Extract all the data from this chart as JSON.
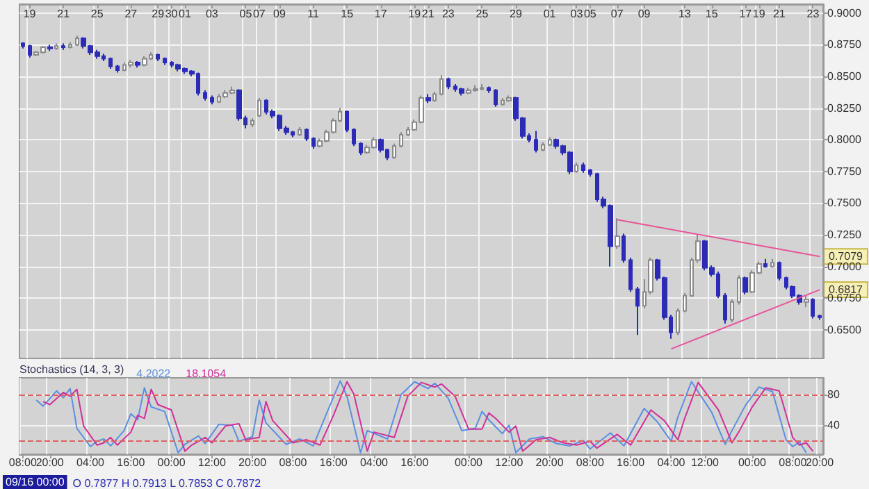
{
  "chart_data": [
    {
      "type": "candlestick",
      "grid": true,
      "marker": "none",
      "categories": [
        null,
        "19",
        null,
        null,
        null,
        null,
        "21",
        null,
        null,
        null,
        null,
        "25",
        null,
        null,
        null,
        null,
        "27",
        null,
        null,
        null,
        "29",
        null,
        "30",
        null,
        "01",
        null,
        null,
        null,
        "03",
        null,
        null,
        null,
        null,
        "05",
        null,
        "07",
        null,
        null,
        "09",
        null,
        null,
        null,
        null,
        "11",
        null,
        null,
        null,
        null,
        "15",
        null,
        null,
        null,
        null,
        "17",
        null,
        null,
        null,
        null,
        "19",
        null,
        "21",
        null,
        null,
        "23",
        null,
        null,
        null,
        null,
        "25",
        null,
        null,
        null,
        null,
        "29",
        null,
        null,
        null,
        null,
        "01",
        null,
        null,
        null,
        "03",
        null,
        "05",
        null,
        null,
        null,
        "07",
        null,
        null,
        null,
        "09",
        null,
        null,
        null,
        null,
        null,
        "13",
        null,
        null,
        null,
        "15",
        null,
        null,
        null,
        null,
        "17",
        null,
        "19",
        null,
        null,
        "21",
        null,
        null,
        null,
        null,
        "23",
        null
      ],
      "ylim": [
        0.6275,
        0.907
      ],
      "yticks": [
        {
          "value": 0.65,
          "label": "0.6500"
        },
        {
          "value": 0.675,
          "label": "0.6750"
        },
        {
          "value": 0.7,
          "label": "0.7000"
        },
        {
          "value": 0.725,
          "label": "0.7250"
        },
        {
          "value": 0.75,
          "label": "0.7500"
        },
        {
          "value": 0.775,
          "label": "0.7750"
        },
        {
          "value": 0.8,
          "label": "0.8000"
        },
        {
          "value": 0.825,
          "label": "0.8250"
        },
        {
          "value": 0.85,
          "label": "0.8500"
        },
        {
          "value": 0.875,
          "label": "0.8750"
        },
        {
          "value": 0.9,
          "label": "0.9000"
        }
      ],
      "annotations": [
        {
          "text": "0.7079",
          "y": 0.7079
        },
        {
          "text": "0.6817",
          "y": 0.6817
        }
      ],
      "series": [
        {
          "type": "candlestick",
          "colors": [
            "#2b2bb5",
            "#2b2bb5",
            "#ffffff",
            "#ffffff",
            "#2b2bb5",
            "#ffffff",
            "#2b2bb5",
            "#ffffff",
            "#ffffff",
            "#2b2bb5",
            "#2b2bb5",
            "#2b2bb5",
            "#2b2bb5",
            "#2b2bb5",
            "#2b2bb5",
            "#ffffff",
            "#ffffff",
            "#2b2bb5",
            "#ffffff",
            "#ffffff",
            "#2b2bb5",
            "#2b2bb5",
            "#2b2bb5",
            "#2b2bb5",
            "#2b2bb5",
            "#2b2bb5",
            "#2b2bb5",
            "#2b2bb5",
            "#2b2bb5",
            "#ffffff",
            "#ffffff",
            "#ffffff",
            "#2b2bb5",
            "#2b2bb5",
            "#ffffff",
            "#ffffff",
            "#2b2bb5",
            "#2b2bb5",
            "#2b2bb5",
            "#2b2bb5",
            "#2b2bb5",
            "#ffffff",
            "#2b2bb5",
            "#2b2bb5",
            "#ffffff",
            "#ffffff",
            "#ffffff",
            "#ffffff",
            "#2b2bb5",
            "#2b2bb5",
            "#2b2bb5",
            "#ffffff",
            "#ffffff",
            "#2b2bb5",
            "#2b2bb5",
            "#ffffff",
            "#ffffff",
            "#ffffff",
            "#ffffff",
            "#ffffff",
            "#2b2bb5",
            "#ffffff",
            "#ffffff",
            "#2b2bb5",
            "#2b2bb5",
            "#2b2bb5",
            "#ffffff",
            "#ffffff",
            "#ffffff",
            "#2b2bb5",
            "#2b2bb5",
            "#ffffff",
            "#ffffff",
            "#2b2bb5",
            "#2b2bb5",
            "#2b2bb5",
            "#2b2bb5",
            "#ffffff",
            "#ffffff",
            "#2b2bb5",
            "#2b2bb5",
            "#2b2bb5",
            "#ffffff",
            "#2b2bb5",
            "#2b2bb5",
            "#2b2bb5",
            "#2b2bb5",
            "#2b2bb5",
            "#ffffff",
            "#2b2bb5",
            "#2b2bb5",
            "#2b2bb5",
            "#ffffff",
            "#ffffff",
            "#2b2bb5",
            "#2b2bb5",
            "#2b2bb5",
            "#ffffff",
            "#ffffff",
            "#ffffff",
            "#ffffff",
            "#2b2bb5",
            "#2b2bb5",
            "#2b2bb5",
            "#2b2bb5",
            "#ffffff",
            "#ffffff",
            "#2b2bb5",
            "#ffffff",
            "#ffffff",
            "#2b2bb5",
            "#ffffff",
            "#2b2bb5",
            "#2b2bb5",
            "#2b2bb5",
            "#2b2bb5",
            "#ffffff",
            "#2b2bb5",
            "#2b2bb5"
          ],
          "ohlc": [
            [
              0.876,
              0.877,
              0.872,
              0.874
            ],
            [
              0.874,
              0.875,
              0.865,
              0.867
            ],
            [
              0.867,
              0.87,
              0.866,
              0.869
            ],
            [
              0.869,
              0.874,
              0.868,
              0.873
            ],
            [
              0.873,
              0.875,
              0.87,
              0.872
            ],
            [
              0.872,
              0.876,
              0.871,
              0.874
            ],
            [
              0.874,
              0.876,
              0.871,
              0.873
            ],
            [
              0.873,
              0.877,
              0.872,
              0.875
            ],
            [
              0.875,
              0.882,
              0.874,
              0.88
            ],
            [
              0.88,
              0.881,
              0.872,
              0.874
            ],
            [
              0.874,
              0.875,
              0.867,
              0.869
            ],
            [
              0.869,
              0.871,
              0.864,
              0.866
            ],
            [
              0.866,
              0.868,
              0.862,
              0.864
            ],
            [
              0.864,
              0.865,
              0.856,
              0.858
            ],
            [
              0.858,
              0.859,
              0.853,
              0.855
            ],
            [
              0.855,
              0.861,
              0.854,
              0.859
            ],
            [
              0.859,
              0.863,
              0.857,
              0.861
            ],
            [
              0.861,
              0.862,
              0.857,
              0.859
            ],
            [
              0.859,
              0.866,
              0.858,
              0.864
            ],
            [
              0.864,
              0.869,
              0.863,
              0.867
            ],
            [
              0.867,
              0.868,
              0.862,
              0.864
            ],
            [
              0.864,
              0.865,
              0.859,
              0.861
            ],
            [
              0.861,
              0.862,
              0.857,
              0.859
            ],
            [
              0.859,
              0.86,
              0.854,
              0.856
            ],
            [
              0.856,
              0.857,
              0.852,
              0.854
            ],
            [
              0.854,
              0.855,
              0.85,
              0.852
            ],
            [
              0.852,
              0.853,
              0.835,
              0.837
            ],
            [
              0.837,
              0.839,
              0.831,
              0.833
            ],
            [
              0.833,
              0.835,
              0.828,
              0.83
            ],
            [
              0.83,
              0.836,
              0.829,
              0.834
            ],
            [
              0.834,
              0.839,
              0.833,
              0.837
            ],
            [
              0.837,
              0.842,
              0.836,
              0.839
            ],
            [
              0.839,
              0.84,
              0.815,
              0.817
            ],
            [
              0.817,
              0.819,
              0.809,
              0.812
            ],
            [
              0.812,
              0.817,
              0.81,
              0.815
            ],
            [
              0.819,
              0.833,
              0.818,
              0.831
            ],
            [
              0.831,
              0.832,
              0.82,
              0.822
            ],
            [
              0.822,
              0.824,
              0.817,
              0.819
            ],
            [
              0.819,
              0.82,
              0.807,
              0.809
            ],
            [
              0.809,
              0.811,
              0.804,
              0.806
            ],
            [
              0.806,
              0.807,
              0.802,
              0.804
            ],
            [
              0.804,
              0.81,
              0.803,
              0.808
            ],
            [
              0.808,
              0.809,
              0.799,
              0.801
            ],
            [
              0.801,
              0.802,
              0.793,
              0.795
            ],
            [
              0.795,
              0.801,
              0.794,
              0.799
            ],
            [
              0.799,
              0.808,
              0.798,
              0.806
            ],
            [
              0.806,
              0.817,
              0.805,
              0.815
            ],
            [
              0.815,
              0.825,
              0.814,
              0.822
            ],
            [
              0.822,
              0.823,
              0.806,
              0.808
            ],
            [
              0.808,
              0.809,
              0.795,
              0.797
            ],
            [
              0.797,
              0.798,
              0.788,
              0.79
            ],
            [
              0.79,
              0.796,
              0.789,
              0.794
            ],
            [
              0.794,
              0.802,
              0.793,
              0.8
            ],
            [
              0.8,
              0.801,
              0.79,
              0.792
            ],
            [
              0.792,
              0.793,
              0.784,
              0.786
            ],
            [
              0.786,
              0.797,
              0.785,
              0.795
            ],
            [
              0.795,
              0.806,
              0.794,
              0.804
            ],
            [
              0.804,
              0.81,
              0.803,
              0.808
            ],
            [
              0.808,
              0.816,
              0.807,
              0.814
            ],
            [
              0.814,
              0.835,
              0.813,
              0.833
            ],
            [
              0.833,
              0.836,
              0.829,
              0.831
            ],
            [
              0.831,
              0.838,
              0.83,
              0.836
            ],
            [
              0.836,
              0.851,
              0.835,
              0.848
            ],
            [
              0.848,
              0.849,
              0.84,
              0.842
            ],
            [
              0.842,
              0.844,
              0.838,
              0.84
            ],
            [
              0.84,
              0.841,
              0.835,
              0.837
            ],
            [
              0.837,
              0.841,
              0.836,
              0.839
            ],
            [
              0.839,
              0.843,
              0.838,
              0.84
            ],
            [
              0.84,
              0.844,
              0.839,
              0.841
            ],
            [
              0.841,
              0.842,
              0.837,
              0.839
            ],
            [
              0.839,
              0.84,
              0.826,
              0.828
            ],
            [
              0.828,
              0.833,
              0.827,
              0.831
            ],
            [
              0.831,
              0.835,
              0.83,
              0.833
            ],
            [
              0.833,
              0.834,
              0.815,
              0.817
            ],
            [
              0.817,
              0.818,
              0.801,
              0.803
            ],
            [
              0.803,
              0.805,
              0.798,
              0.8
            ],
            [
              0.8,
              0.807,
              0.79,
              0.792
            ],
            [
              0.792,
              0.798,
              0.791,
              0.796
            ],
            [
              0.796,
              0.802,
              0.795,
              0.8
            ],
            [
              0.8,
              0.801,
              0.793,
              0.795
            ],
            [
              0.795,
              0.796,
              0.788,
              0.79
            ],
            [
              0.79,
              0.791,
              0.773,
              0.775
            ],
            [
              0.775,
              0.782,
              0.774,
              0.78
            ],
            [
              0.78,
              0.782,
              0.774,
              0.776
            ],
            [
              0.776,
              0.777,
              0.771,
              0.773
            ],
            [
              0.773,
              0.774,
              0.751,
              0.753
            ],
            [
              0.753,
              0.755,
              0.746,
              0.748
            ],
            [
              0.748,
              0.749,
              0.7,
              0.716
            ],
            [
              0.716,
              0.738,
              0.714,
              0.724
            ],
            [
              0.724,
              0.726,
              0.703,
              0.705
            ],
            [
              0.705,
              0.707,
              0.68,
              0.682
            ],
            [
              0.682,
              0.684,
              0.646,
              0.669
            ],
            [
              0.669,
              0.69,
              0.667,
              0.68
            ],
            [
              0.68,
              0.707,
              0.678,
              0.705
            ],
            [
              0.705,
              0.706,
              0.689,
              0.691
            ],
            [
              0.691,
              0.692,
              0.658,
              0.66
            ],
            [
              0.66,
              0.662,
              0.643,
              0.648
            ],
            [
              0.648,
              0.667,
              0.646,
              0.665
            ],
            [
              0.665,
              0.679,
              0.664,
              0.677
            ],
            [
              0.677,
              0.707,
              0.676,
              0.705
            ],
            [
              0.705,
              0.725,
              0.703,
              0.72
            ],
            [
              0.72,
              0.721,
              0.697,
              0.699
            ],
            [
              0.699,
              0.701,
              0.692,
              0.694
            ],
            [
              0.694,
              0.696,
              0.675,
              0.677
            ],
            [
              0.677,
              0.679,
              0.655,
              0.658
            ],
            [
              0.658,
              0.674,
              0.656,
              0.672
            ],
            [
              0.672,
              0.693,
              0.67,
              0.691
            ],
            [
              0.691,
              0.692,
              0.678,
              0.68
            ],
            [
              0.68,
              0.697,
              0.679,
              0.695
            ],
            [
              0.695,
              0.704,
              0.694,
              0.702
            ],
            [
              0.702,
              0.706,
              0.699,
              0.7
            ],
            [
              0.7,
              0.706,
              0.699,
              0.703
            ],
            [
              0.703,
              0.704,
              0.689,
              0.691
            ],
            [
              0.691,
              0.692,
              0.682,
              0.684
            ],
            [
              0.684,
              0.685,
              0.675,
              0.677
            ],
            [
              0.677,
              0.678,
              0.67,
              0.672
            ],
            [
              0.672,
              0.677,
              0.668,
              0.674
            ],
            [
              0.674,
              0.675,
              0.659,
              0.661
            ],
            [
              0.661,
              0.662,
              0.658,
              0.66
            ]
          ]
        },
        {
          "type": "line",
          "color": "#e8559a",
          "values": [
            null,
            null,
            null,
            null,
            null,
            null,
            null,
            null,
            null,
            null,
            null,
            null,
            null,
            null,
            null,
            null,
            null,
            null,
            null,
            null,
            null,
            null,
            null,
            null,
            null,
            null,
            null,
            null,
            null,
            null,
            null,
            null,
            null,
            null,
            null,
            null,
            null,
            null,
            null,
            null,
            null,
            null,
            null,
            null,
            null,
            null,
            null,
            null,
            null,
            null,
            null,
            null,
            null,
            null,
            null,
            null,
            null,
            null,
            null,
            null,
            null,
            null,
            null,
            null,
            null,
            null,
            null,
            null,
            null,
            null,
            null,
            null,
            null,
            null,
            null,
            null,
            null,
            null,
            null,
            null,
            null,
            null,
            null,
            null,
            null,
            null,
            null,
            null,
            0.737,
            null,
            null,
            null,
            null,
            null,
            null,
            null,
            null,
            null,
            null,
            null,
            null,
            null,
            null,
            null,
            null,
            null,
            null,
            null,
            null,
            null,
            null,
            null,
            null,
            null,
            null,
            null,
            null,
            null,
            0.7079
          ]
        },
        {
          "type": "line",
          "color": "#e8559a",
          "values": [
            null,
            null,
            null,
            null,
            null,
            null,
            null,
            null,
            null,
            null,
            null,
            null,
            null,
            null,
            null,
            null,
            null,
            null,
            null,
            null,
            null,
            null,
            null,
            null,
            null,
            null,
            null,
            null,
            null,
            null,
            null,
            null,
            null,
            null,
            null,
            null,
            null,
            null,
            null,
            null,
            null,
            null,
            null,
            null,
            null,
            null,
            null,
            null,
            null,
            null,
            null,
            null,
            null,
            null,
            null,
            null,
            null,
            null,
            null,
            null,
            null,
            null,
            null,
            null,
            null,
            null,
            null,
            null,
            null,
            null,
            null,
            null,
            null,
            null,
            null,
            null,
            null,
            null,
            null,
            null,
            null,
            null,
            null,
            null,
            null,
            null,
            null,
            null,
            null,
            null,
            null,
            null,
            null,
            null,
            null,
            null,
            0.635,
            null,
            null,
            null,
            null,
            null,
            null,
            null,
            null,
            null,
            null,
            null,
            null,
            null,
            null,
            null,
            null,
            null,
            null,
            null,
            null,
            null,
            0.6817
          ]
        }
      ]
    },
    {
      "type": "line",
      "title": "Stochastics (14, 3, 3)",
      "grid": true,
      "legend": "top left",
      "marker": "none",
      "categories": [
        "08:00",
        null,
        null,
        null,
        "20:00",
        null,
        null,
        null,
        null,
        null,
        "04:00",
        null,
        null,
        null,
        null,
        null,
        "16:00",
        null,
        null,
        null,
        null,
        null,
        "00:00",
        null,
        null,
        null,
        null,
        null,
        "12:00",
        null,
        null,
        null,
        null,
        null,
        "20:00",
        null,
        null,
        null,
        null,
        null,
        "08:00",
        null,
        null,
        null,
        null,
        null,
        "16:00",
        null,
        null,
        null,
        null,
        null,
        "04:00",
        null,
        null,
        null,
        null,
        null,
        "16:00",
        null,
        null,
        null,
        null,
        null,
        null,
        null,
        "00:00",
        null,
        null,
        null,
        null,
        null,
        "12:00",
        null,
        null,
        null,
        null,
        null,
        "20:00",
        null,
        null,
        null,
        null,
        null,
        "08:00",
        null,
        null,
        null,
        null,
        null,
        "16:00",
        null,
        null,
        null,
        null,
        null,
        "04:00",
        null,
        null,
        null,
        null,
        "12:00",
        null,
        null,
        null,
        null,
        null,
        null,
        "00:00",
        null,
        null,
        null,
        null,
        null,
        "08:00",
        null,
        null,
        null,
        "20:00"
      ],
      "ylim": [
        2,
        102
      ],
      "yticks": [
        40,
        80
      ],
      "ref_lines": [
        {
          "axis": "y",
          "value": 80,
          "color": "#e06060",
          "line_style": "dashed"
        },
        {
          "axis": "y",
          "value": 20,
          "color": "#e06060",
          "line_style": "dashed"
        }
      ],
      "annotations": [
        "09/16 00:00",
        "O 0.7877 H 0.7913 L 0.7853 C 0.7872"
      ],
      "series": [
        {
          "name": "4.2022",
          "color": "#5b8fe0",
          "values": [
            null,
            null,
            73,
            65,
            null,
            85,
            76,
            88,
            36,
            null,
            12,
            19,
            22,
            13,
            null,
            33,
            55,
            47,
            89,
            64,
            null,
            58,
            null,
            4,
            15,
            null,
            26,
            16,
            null,
            41,
            null,
            40,
            19,
            null,
            25,
            73,
            43,
            null,
            null,
            15,
            null,
            22,
            null,
            13,
            null,
            56,
            null,
            98,
            78,
            null,
            4,
            33,
            null,
            null,
            22,
            null,
            80,
            null,
            97,
            null,
            88,
            95,
            null,
            75,
            null,
            33,
            null,
            36,
            58,
            47,
            null,
            29,
            40,
            4,
            null,
            22,
            null,
            25,
            null,
            16,
            null,
            13,
            null,
            20,
            9,
            null,
            null,
            30,
            null,
            13,
            null,
            null,
            62,
            null,
            44,
            null,
            19,
            51,
            null,
            97,
            null,
            null,
            57,
            null,
            15,
            33,
            null,
            66,
            null,
            90,
            null,
            84,
            null,
            21,
            12,
            18,
            4,
            null,
            null
          ]
        },
        {
          "name": "18.1054",
          "color": "#d0309a",
          "values": [
            null,
            null,
            null,
            71,
            67,
            null,
            83,
            78,
            87,
            39,
            null,
            14,
            17,
            24,
            14,
            null,
            31,
            53,
            49,
            87,
            67,
            null,
            60,
            null,
            6,
            14,
            null,
            24,
            17,
            null,
            39,
            null,
            42,
            21,
            null,
            24,
            71,
            46,
            null,
            null,
            17,
            null,
            21,
            null,
            14,
            null,
            53,
            null,
            97,
            81,
            null,
            6,
            31,
            null,
            null,
            24,
            null,
            78,
            null,
            96,
            null,
            90,
            94,
            null,
            78,
            null,
            35,
            null,
            35,
            56,
            49,
            null,
            31,
            39,
            6,
            null,
            21,
            null,
            24,
            null,
            17,
            null,
            14,
            null,
            19,
            10,
            null,
            null,
            28,
            null,
            14,
            null,
            null,
            60,
            null,
            46,
            null,
            21,
            49,
            null,
            96,
            null,
            null,
            60,
            null,
            17,
            31,
            null,
            64,
            null,
            89,
            null,
            85,
            null,
            24,
            14,
            17,
            6,
            null
          ]
        }
      ]
    }
  ]
}
